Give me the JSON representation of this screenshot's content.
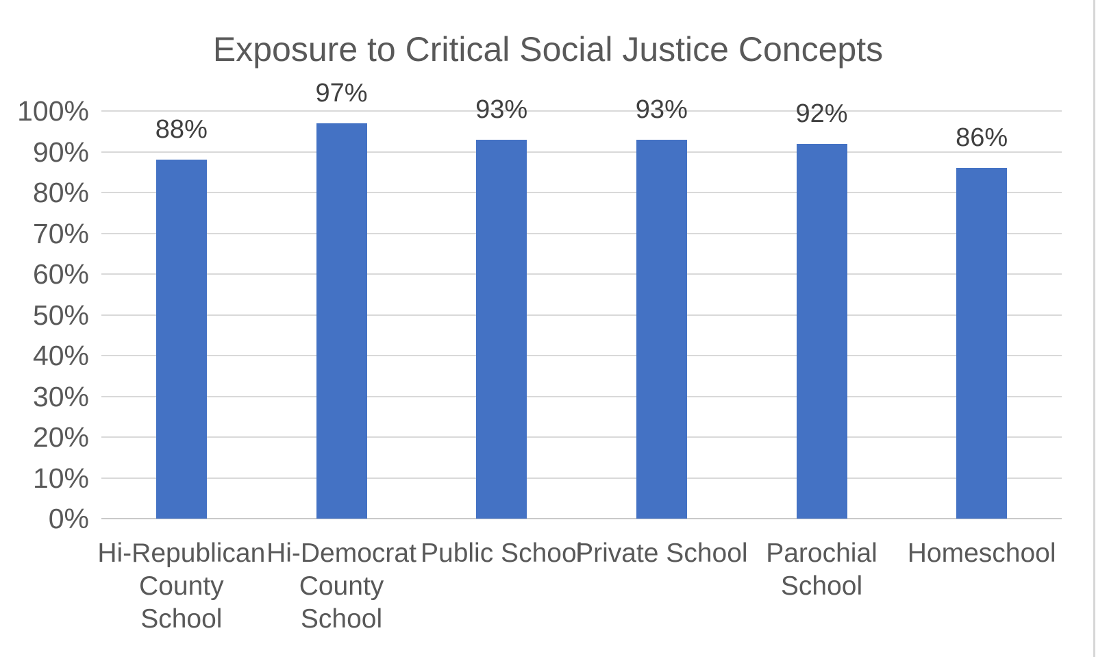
{
  "page": {
    "background_color": "#ffffff",
    "right_edge_border_color": "#d6d6d6"
  },
  "chart_data": {
    "type": "bar",
    "title": "Exposure to Critical Social Justice Concepts",
    "categories": [
      "Hi-Republican County School",
      "Hi-Democrat County School",
      "Public School",
      "Private School",
      "Parochial School",
      "Homeschool"
    ],
    "category_display": [
      "Hi-Republican\nCounty\nSchool",
      "Hi-Democrat\nCounty\nSchool",
      "Public School",
      "Private School",
      "Parochial\nSchool",
      "Homeschool"
    ],
    "values": [
      88,
      97,
      93,
      93,
      92,
      86
    ],
    "data_labels": [
      "88%",
      "97%",
      "93%",
      "93%",
      "92%",
      "86%"
    ],
    "yticks": [
      "0%",
      "10%",
      "20%",
      "30%",
      "40%",
      "50%",
      "60%",
      "70%",
      "80%",
      "90%",
      "100%"
    ],
    "ylim": [
      0,
      100
    ],
    "ytick_step": 10,
    "xlabel": "",
    "ylabel": "",
    "grid": true,
    "legend": false,
    "colors": {
      "bar": "#4472C4",
      "title_text": "#595959",
      "axis_text": "#595959",
      "data_label_text": "#404040",
      "gridline": "#d9d9d9",
      "axis_line": "#c9c9c9"
    }
  }
}
